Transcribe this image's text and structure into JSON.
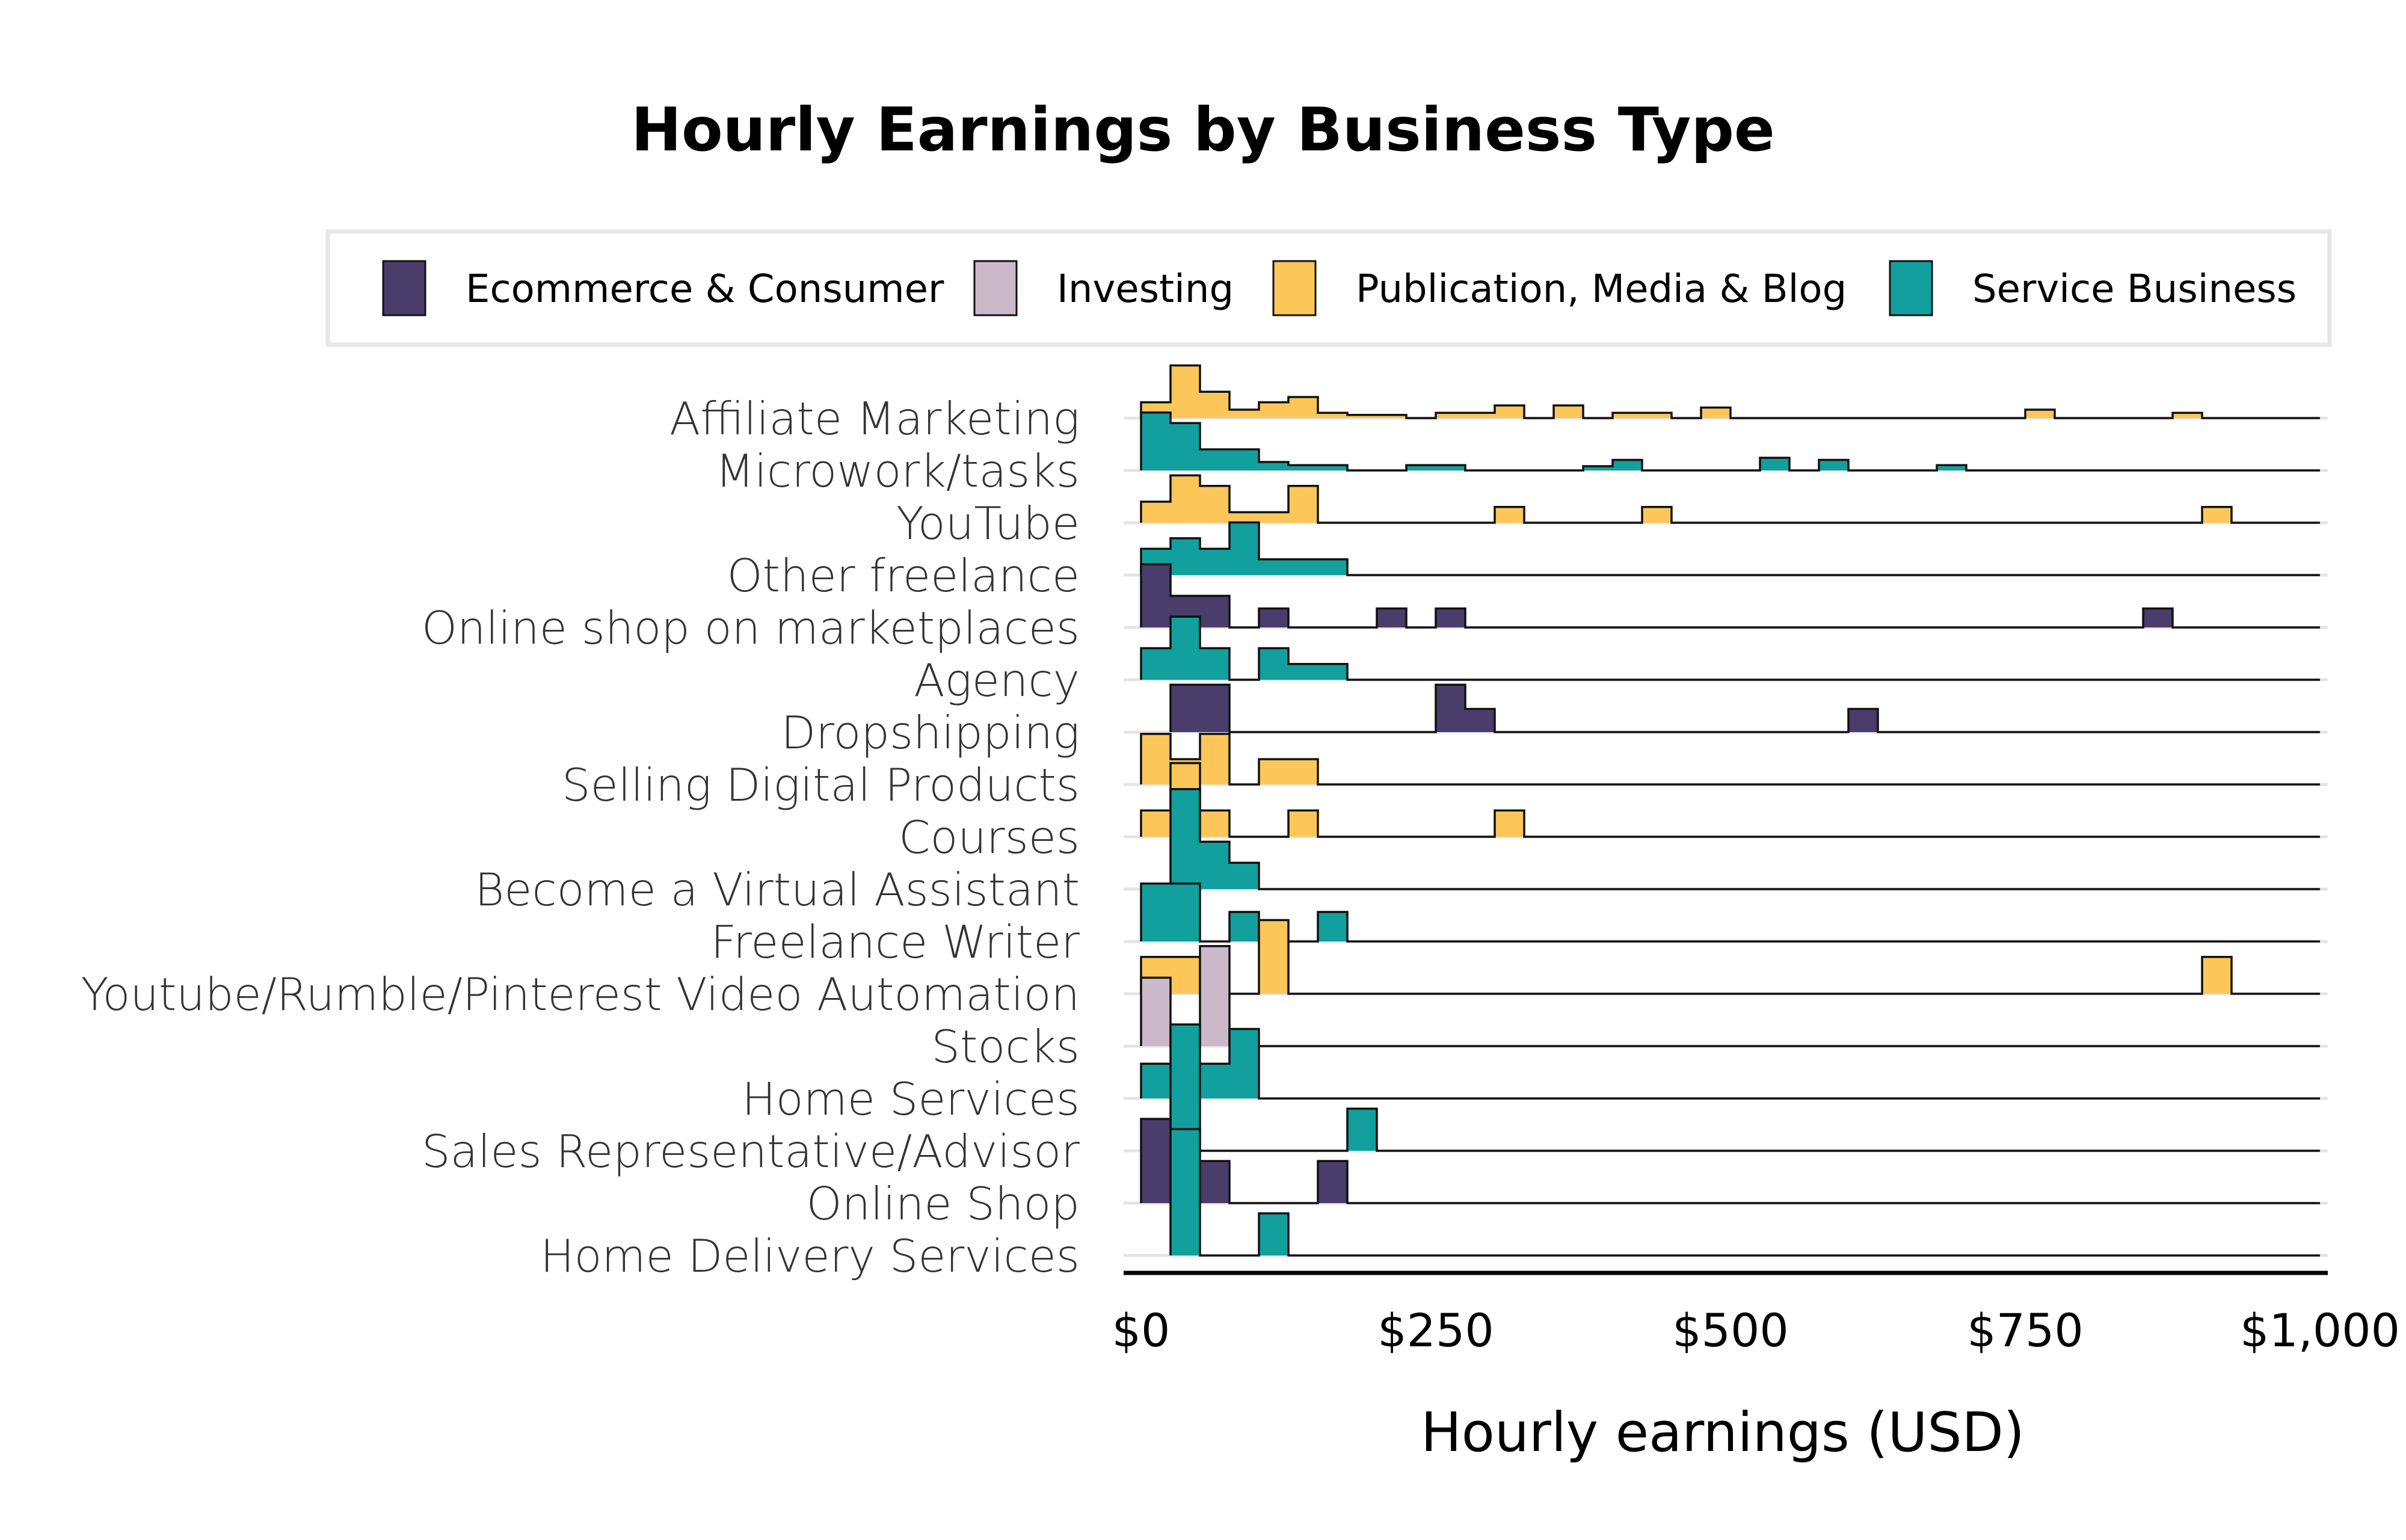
{
  "chart_data": {
    "type": "histogram-ridgeline",
    "title": "Hourly Earnings by Business Type",
    "xlabel": "Hourly earnings (USD)",
    "xlim": [
      0,
      1000
    ],
    "bin_width": 25,
    "x_ticks": [
      0,
      250,
      500,
      750,
      1000
    ],
    "x_tick_labels": [
      "$0",
      "$250",
      "$500",
      "$750",
      "$1,000"
    ],
    "legend": {
      "placement": "top",
      "entries": [
        {
          "name": "Ecommerce & Consumer",
          "color": "#483D6B"
        },
        {
          "name": "Investing",
          "color": "#CBB8C8"
        },
        {
          "name": "Publication, Media & Blog",
          "color": "#FDC659"
        },
        {
          "name": "Service Business",
          "color": "#11A09D"
        }
      ]
    },
    "series": [
      {
        "label": "Affiliate Marketing",
        "category": "Publication, Media & Blog",
        "bins": [
          {
            "x": 0,
            "h": 0.15
          },
          {
            "x": 25,
            "h": 0.5
          },
          {
            "x": 50,
            "h": 0.25
          },
          {
            "x": 75,
            "h": 0.08
          },
          {
            "x": 100,
            "h": 0.15
          },
          {
            "x": 125,
            "h": 0.2
          },
          {
            "x": 150,
            "h": 0.05
          },
          {
            "x": 175,
            "h": 0.03
          },
          {
            "x": 200,
            "h": 0.03
          },
          {
            "x": 250,
            "h": 0.05
          },
          {
            "x": 275,
            "h": 0.05
          },
          {
            "x": 300,
            "h": 0.12
          },
          {
            "x": 350,
            "h": 0.12
          },
          {
            "x": 400,
            "h": 0.05
          },
          {
            "x": 425,
            "h": 0.05
          },
          {
            "x": 475,
            "h": 0.1
          },
          {
            "x": 750,
            "h": 0.08
          },
          {
            "x": 875,
            "h": 0.05
          }
        ]
      },
      {
        "label": "Microwork/tasks",
        "category": "Service Business",
        "bins": [
          {
            "x": 0,
            "h": 0.55
          },
          {
            "x": 25,
            "h": 0.45
          },
          {
            "x": 50,
            "h": 0.2
          },
          {
            "x": 75,
            "h": 0.2
          },
          {
            "x": 100,
            "h": 0.08
          },
          {
            "x": 125,
            "h": 0.05
          },
          {
            "x": 150,
            "h": 0.05
          },
          {
            "x": 225,
            "h": 0.05
          },
          {
            "x": 250,
            "h": 0.05
          },
          {
            "x": 375,
            "h": 0.04
          },
          {
            "x": 400,
            "h": 0.1
          },
          {
            "x": 525,
            "h": 0.12
          },
          {
            "x": 575,
            "h": 0.1
          },
          {
            "x": 675,
            "h": 0.05
          }
        ]
      },
      {
        "label": "YouTube",
        "category": "Publication, Media & Blog",
        "bins": [
          {
            "x": 0,
            "h": 0.2
          },
          {
            "x": 25,
            "h": 0.45
          },
          {
            "x": 50,
            "h": 0.35
          },
          {
            "x": 75,
            "h": 0.1
          },
          {
            "x": 100,
            "h": 0.1
          },
          {
            "x": 125,
            "h": 0.35
          },
          {
            "x": 300,
            "h": 0.15
          },
          {
            "x": 425,
            "h": 0.15
          },
          {
            "x": 900,
            "h": 0.15
          }
        ]
      },
      {
        "label": "Other freelance",
        "category": "Service Business",
        "bins": [
          {
            "x": 0,
            "h": 0.25
          },
          {
            "x": 25,
            "h": 0.35
          },
          {
            "x": 50,
            "h": 0.25
          },
          {
            "x": 75,
            "h": 0.5
          },
          {
            "x": 100,
            "h": 0.15
          },
          {
            "x": 125,
            "h": 0.15
          },
          {
            "x": 150,
            "h": 0.15
          }
        ]
      },
      {
        "label": "Online shop on marketplaces",
        "category": "Ecommerce & Consumer",
        "bins": [
          {
            "x": 0,
            "h": 0.6
          },
          {
            "x": 25,
            "h": 0.3
          },
          {
            "x": 50,
            "h": 0.3
          },
          {
            "x": 100,
            "h": 0.18
          },
          {
            "x": 200,
            "h": 0.18
          },
          {
            "x": 250,
            "h": 0.18
          },
          {
            "x": 850,
            "h": 0.18
          }
        ]
      },
      {
        "label": "Agency",
        "category": "Service Business",
        "bins": [
          {
            "x": 0,
            "h": 0.3
          },
          {
            "x": 25,
            "h": 0.6
          },
          {
            "x": 50,
            "h": 0.3
          },
          {
            "x": 100,
            "h": 0.3
          },
          {
            "x": 125,
            "h": 0.15
          },
          {
            "x": 150,
            "h": 0.15
          }
        ]
      },
      {
        "label": "Dropshipping",
        "category": "Ecommerce & Consumer",
        "bins": [
          {
            "x": 25,
            "h": 0.45
          },
          {
            "x": 50,
            "h": 0.45
          },
          {
            "x": 250,
            "h": 0.45
          },
          {
            "x": 275,
            "h": 0.22
          },
          {
            "x": 600,
            "h": 0.22
          }
        ]
      },
      {
        "label": "Selling Digital Products",
        "category": "Publication, Media & Blog",
        "bins": [
          {
            "x": 0,
            "h": 0.48
          },
          {
            "x": 25,
            "h": 0.24
          },
          {
            "x": 50,
            "h": 0.48
          },
          {
            "x": 100,
            "h": 0.24
          },
          {
            "x": 125,
            "h": 0.24
          }
        ]
      },
      {
        "label": "Courses",
        "category": "Publication, Media & Blog",
        "bins": [
          {
            "x": 0,
            "h": 0.25
          },
          {
            "x": 25,
            "h": 0.7
          },
          {
            "x": 50,
            "h": 0.25
          },
          {
            "x": 125,
            "h": 0.25
          },
          {
            "x": 300,
            "h": 0.25
          }
        ]
      },
      {
        "label": "Become a Virtual Assistant",
        "category": "Service Business",
        "bins": [
          {
            "x": 25,
            "h": 0.95
          },
          {
            "x": 50,
            "h": 0.45
          },
          {
            "x": 75,
            "h": 0.25
          }
        ]
      },
      {
        "label": "Freelance Writer",
        "category": "Service Business",
        "bins": [
          {
            "x": 0,
            "h": 0.55
          },
          {
            "x": 25,
            "h": 0.55
          },
          {
            "x": 75,
            "h": 0.28
          },
          {
            "x": 150,
            "h": 0.28
          }
        ]
      },
      {
        "label": "Youtube/Rumble/Pinterest Video Automation",
        "category": "Publication, Media & Blog",
        "bins": [
          {
            "x": 0,
            "h": 0.35
          },
          {
            "x": 25,
            "h": 0.35
          },
          {
            "x": 100,
            "h": 0.7
          },
          {
            "x": 900,
            "h": 0.35
          }
        ]
      },
      {
        "label": "Stocks",
        "category": "Investing",
        "bins": [
          {
            "x": 0,
            "h": 0.65
          },
          {
            "x": 50,
            "h": 0.95
          }
        ]
      },
      {
        "label": "Home Services",
        "category": "Service Business",
        "bins": [
          {
            "x": 0,
            "h": 0.33
          },
          {
            "x": 25,
            "h": 0.33
          },
          {
            "x": 50,
            "h": 0.33
          },
          {
            "x": 75,
            "h": 0.66
          }
        ]
      },
      {
        "label": "Sales Representative/Advisor",
        "category": "Service Business",
        "bins": [
          {
            "x": 25,
            "h": 1.2
          },
          {
            "x": 175,
            "h": 0.4
          }
        ]
      },
      {
        "label": "Online Shop",
        "category": "Ecommerce & Consumer",
        "bins": [
          {
            "x": 0,
            "h": 0.8
          },
          {
            "x": 50,
            "h": 0.4
          },
          {
            "x": 150,
            "h": 0.4
          }
        ]
      },
      {
        "label": "Home Delivery Services",
        "category": "Service Business",
        "bins": [
          {
            "x": 25,
            "h": 1.2
          },
          {
            "x": 100,
            "h": 0.4
          }
        ]
      }
    ]
  }
}
